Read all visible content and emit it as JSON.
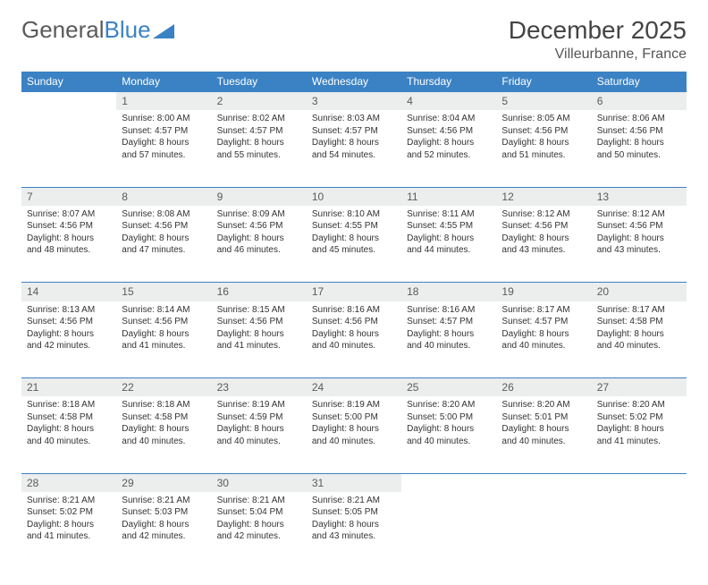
{
  "logo": {
    "text1": "General",
    "text2": "Blue"
  },
  "title": "December 2025",
  "location": "Villeurbanne, France",
  "colors": {
    "header_bg": "#3b82c4",
    "daynum_bg": "#eceded",
    "row_border": "#3b82c4",
    "text": "#333333",
    "title_text": "#444444"
  },
  "weekdays": [
    "Sunday",
    "Monday",
    "Tuesday",
    "Wednesday",
    "Thursday",
    "Friday",
    "Saturday"
  ],
  "weeks": [
    [
      null,
      {
        "n": "1",
        "sr": "Sunrise: 8:00 AM",
        "ss": "Sunset: 4:57 PM",
        "d1": "Daylight: 8 hours",
        "d2": "and 57 minutes."
      },
      {
        "n": "2",
        "sr": "Sunrise: 8:02 AM",
        "ss": "Sunset: 4:57 PM",
        "d1": "Daylight: 8 hours",
        "d2": "and 55 minutes."
      },
      {
        "n": "3",
        "sr": "Sunrise: 8:03 AM",
        "ss": "Sunset: 4:57 PM",
        "d1": "Daylight: 8 hours",
        "d2": "and 54 minutes."
      },
      {
        "n": "4",
        "sr": "Sunrise: 8:04 AM",
        "ss": "Sunset: 4:56 PM",
        "d1": "Daylight: 8 hours",
        "d2": "and 52 minutes."
      },
      {
        "n": "5",
        "sr": "Sunrise: 8:05 AM",
        "ss": "Sunset: 4:56 PM",
        "d1": "Daylight: 8 hours",
        "d2": "and 51 minutes."
      },
      {
        "n": "6",
        "sr": "Sunrise: 8:06 AM",
        "ss": "Sunset: 4:56 PM",
        "d1": "Daylight: 8 hours",
        "d2": "and 50 minutes."
      }
    ],
    [
      {
        "n": "7",
        "sr": "Sunrise: 8:07 AM",
        "ss": "Sunset: 4:56 PM",
        "d1": "Daylight: 8 hours",
        "d2": "and 48 minutes."
      },
      {
        "n": "8",
        "sr": "Sunrise: 8:08 AM",
        "ss": "Sunset: 4:56 PM",
        "d1": "Daylight: 8 hours",
        "d2": "and 47 minutes."
      },
      {
        "n": "9",
        "sr": "Sunrise: 8:09 AM",
        "ss": "Sunset: 4:56 PM",
        "d1": "Daylight: 8 hours",
        "d2": "and 46 minutes."
      },
      {
        "n": "10",
        "sr": "Sunrise: 8:10 AM",
        "ss": "Sunset: 4:55 PM",
        "d1": "Daylight: 8 hours",
        "d2": "and 45 minutes."
      },
      {
        "n": "11",
        "sr": "Sunrise: 8:11 AM",
        "ss": "Sunset: 4:55 PM",
        "d1": "Daylight: 8 hours",
        "d2": "and 44 minutes."
      },
      {
        "n": "12",
        "sr": "Sunrise: 8:12 AM",
        "ss": "Sunset: 4:56 PM",
        "d1": "Daylight: 8 hours",
        "d2": "and 43 minutes."
      },
      {
        "n": "13",
        "sr": "Sunrise: 8:12 AM",
        "ss": "Sunset: 4:56 PM",
        "d1": "Daylight: 8 hours",
        "d2": "and 43 minutes."
      }
    ],
    [
      {
        "n": "14",
        "sr": "Sunrise: 8:13 AM",
        "ss": "Sunset: 4:56 PM",
        "d1": "Daylight: 8 hours",
        "d2": "and 42 minutes."
      },
      {
        "n": "15",
        "sr": "Sunrise: 8:14 AM",
        "ss": "Sunset: 4:56 PM",
        "d1": "Daylight: 8 hours",
        "d2": "and 41 minutes."
      },
      {
        "n": "16",
        "sr": "Sunrise: 8:15 AM",
        "ss": "Sunset: 4:56 PM",
        "d1": "Daylight: 8 hours",
        "d2": "and 41 minutes."
      },
      {
        "n": "17",
        "sr": "Sunrise: 8:16 AM",
        "ss": "Sunset: 4:56 PM",
        "d1": "Daylight: 8 hours",
        "d2": "and 40 minutes."
      },
      {
        "n": "18",
        "sr": "Sunrise: 8:16 AM",
        "ss": "Sunset: 4:57 PM",
        "d1": "Daylight: 8 hours",
        "d2": "and 40 minutes."
      },
      {
        "n": "19",
        "sr": "Sunrise: 8:17 AM",
        "ss": "Sunset: 4:57 PM",
        "d1": "Daylight: 8 hours",
        "d2": "and 40 minutes."
      },
      {
        "n": "20",
        "sr": "Sunrise: 8:17 AM",
        "ss": "Sunset: 4:58 PM",
        "d1": "Daylight: 8 hours",
        "d2": "and 40 minutes."
      }
    ],
    [
      {
        "n": "21",
        "sr": "Sunrise: 8:18 AM",
        "ss": "Sunset: 4:58 PM",
        "d1": "Daylight: 8 hours",
        "d2": "and 40 minutes."
      },
      {
        "n": "22",
        "sr": "Sunrise: 8:18 AM",
        "ss": "Sunset: 4:58 PM",
        "d1": "Daylight: 8 hours",
        "d2": "and 40 minutes."
      },
      {
        "n": "23",
        "sr": "Sunrise: 8:19 AM",
        "ss": "Sunset: 4:59 PM",
        "d1": "Daylight: 8 hours",
        "d2": "and 40 minutes."
      },
      {
        "n": "24",
        "sr": "Sunrise: 8:19 AM",
        "ss": "Sunset: 5:00 PM",
        "d1": "Daylight: 8 hours",
        "d2": "and 40 minutes."
      },
      {
        "n": "25",
        "sr": "Sunrise: 8:20 AM",
        "ss": "Sunset: 5:00 PM",
        "d1": "Daylight: 8 hours",
        "d2": "and 40 minutes."
      },
      {
        "n": "26",
        "sr": "Sunrise: 8:20 AM",
        "ss": "Sunset: 5:01 PM",
        "d1": "Daylight: 8 hours",
        "d2": "and 40 minutes."
      },
      {
        "n": "27",
        "sr": "Sunrise: 8:20 AM",
        "ss": "Sunset: 5:02 PM",
        "d1": "Daylight: 8 hours",
        "d2": "and 41 minutes."
      }
    ],
    [
      {
        "n": "28",
        "sr": "Sunrise: 8:21 AM",
        "ss": "Sunset: 5:02 PM",
        "d1": "Daylight: 8 hours",
        "d2": "and 41 minutes."
      },
      {
        "n": "29",
        "sr": "Sunrise: 8:21 AM",
        "ss": "Sunset: 5:03 PM",
        "d1": "Daylight: 8 hours",
        "d2": "and 42 minutes."
      },
      {
        "n": "30",
        "sr": "Sunrise: 8:21 AM",
        "ss": "Sunset: 5:04 PM",
        "d1": "Daylight: 8 hours",
        "d2": "and 42 minutes."
      },
      {
        "n": "31",
        "sr": "Sunrise: 8:21 AM",
        "ss": "Sunset: 5:05 PM",
        "d1": "Daylight: 8 hours",
        "d2": "and 43 minutes."
      },
      null,
      null,
      null
    ]
  ]
}
